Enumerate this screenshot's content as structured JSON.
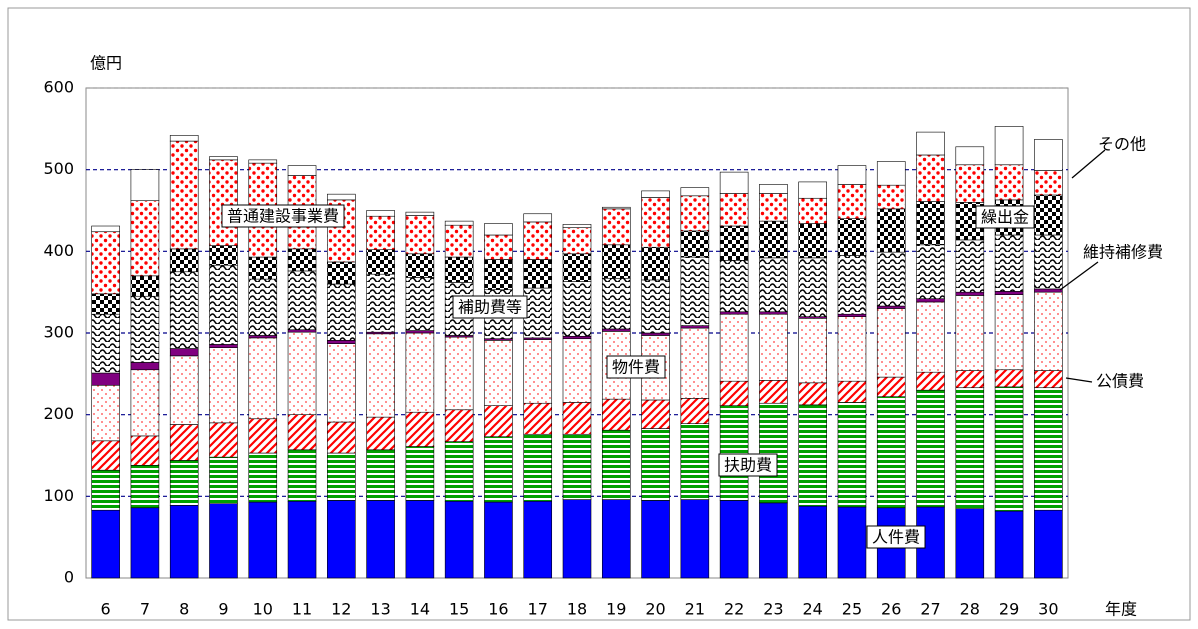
{
  "chart_data": {
    "type": "stacked-bar",
    "y_unit": "億円",
    "x_label": "年度",
    "categories": [
      "6",
      "7",
      "8",
      "9",
      "10",
      "11",
      "12",
      "13",
      "14",
      "15",
      "16",
      "17",
      "18",
      "19",
      "20",
      "21",
      "22",
      "23",
      "24",
      "25",
      "26",
      "27",
      "28",
      "29",
      "30"
    ],
    "ylim": [
      0,
      600
    ],
    "yticks": [
      0,
      100,
      200,
      300,
      400,
      500,
      600
    ],
    "grid": true,
    "series": [
      {
        "name": "人件費",
        "color": "#0000ff",
        "values": [
          83,
          86,
          89,
          91,
          93,
          94,
          95,
          95,
          95,
          94,
          93,
          94,
          96,
          96,
          95,
          96,
          95,
          92,
          88,
          87,
          86,
          87,
          85,
          82,
          83
        ]
      },
      {
        "name": "扶助費",
        "color": "#00a000",
        "values": [
          49,
          52,
          55,
          57,
          60,
          63,
          58,
          62,
          66,
          73,
          80,
          82,
          80,
          85,
          88,
          93,
          116,
          122,
          124,
          128,
          136,
          143,
          148,
          152,
          150
        ]
      },
      {
        "name": "公債費",
        "color": "#ff0000",
        "values": [
          36,
          36,
          44,
          42,
          42,
          43,
          38,
          40,
          42,
          39,
          38,
          38,
          39,
          38,
          35,
          31,
          30,
          28,
          27,
          26,
          24,
          22,
          21,
          21,
          21
        ]
      },
      {
        "name": "物件費",
        "color": "#ff4040",
        "values": [
          68,
          81,
          84,
          92,
          99,
          101,
          96,
          102,
          97,
          89,
          80,
          78,
          78,
          83,
          79,
          86,
          82,
          81,
          79,
          79,
          84,
          86,
          92,
          92,
          96
        ]
      },
      {
        "name": "維持補修費",
        "color": "#800080",
        "values": [
          15,
          9,
          9,
          4,
          3,
          3,
          4,
          2,
          3,
          2,
          2,
          2,
          3,
          3,
          3,
          3,
          3,
          3,
          2,
          3,
          3,
          4,
          4,
          4,
          4
        ]
      },
      {
        "name": "補助費等",
        "color": "#000000",
        "values": [
          72,
          81,
          94,
          97,
          69,
          72,
          69,
          71,
          65,
          65,
          60,
          61,
          67,
          62,
          65,
          84,
          63,
          66,
          72,
          72,
          66,
          66,
          64,
          69,
          66
        ]
      },
      {
        "name": "繰出金",
        "color": "#000000",
        "values": [
          25,
          25,
          28,
          24,
          27,
          27,
          27,
          30,
          29,
          31,
          37,
          35,
          34,
          41,
          40,
          32,
          42,
          45,
          42,
          45,
          53,
          53,
          46,
          43,
          49
        ]
      },
      {
        "name": "普通建設事業費",
        "color": "#ff0000",
        "values": [
          76,
          92,
          132,
          105,
          115,
          90,
          76,
          41,
          47,
          39,
          30,
          46,
          32,
          44,
          61,
          43,
          40,
          34,
          31,
          42,
          29,
          57,
          46,
          43,
          30
        ]
      },
      {
        "name": "その他",
        "color": "#ffffff",
        "values": [
          7,
          38,
          7,
          4,
          4,
          12,
          7,
          7,
          4,
          5,
          14,
          10,
          4,
          2,
          8,
          10,
          26,
          11,
          20,
          23,
          29,
          28,
          22,
          47,
          38
        ]
      }
    ]
  }
}
